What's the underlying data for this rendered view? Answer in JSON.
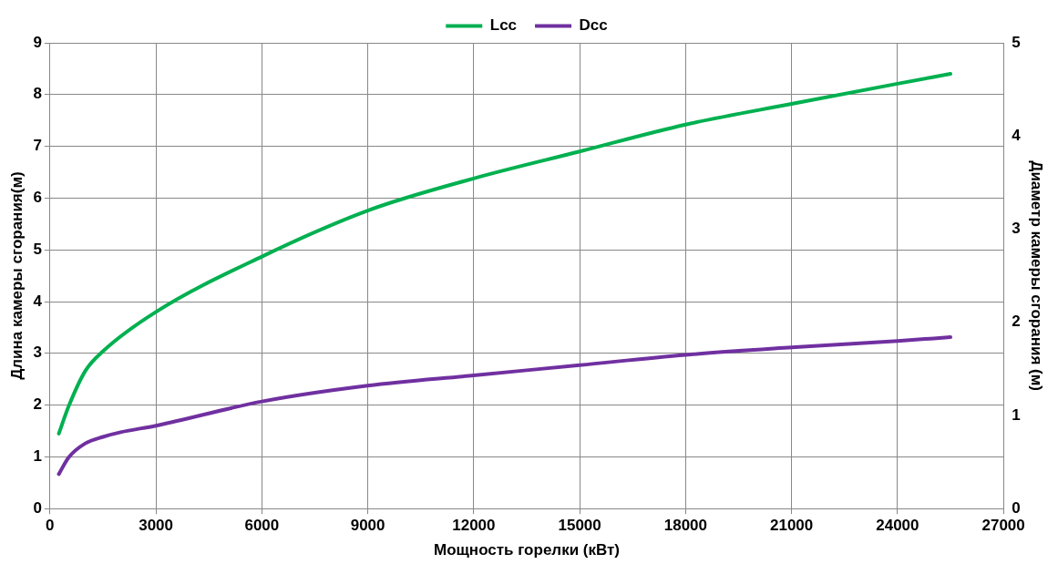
{
  "chart_data": {
    "type": "line",
    "xlabel": "Мощность горелки (кВт)",
    "ylabel": "Длина камеры сгорания(м)",
    "y2label": "Диаметр камеры сгорания (м)",
    "xlim": [
      0,
      27000
    ],
    "xticks": [
      0,
      3000,
      6000,
      9000,
      12000,
      15000,
      18000,
      21000,
      24000,
      27000
    ],
    "ylim": [
      0,
      9
    ],
    "yticks": [
      0,
      1,
      2,
      3,
      4,
      5,
      6,
      7,
      8,
      9
    ],
    "y2lim": [
      0,
      5
    ],
    "y2ticks": [
      0,
      1,
      2,
      3,
      4,
      5
    ],
    "grid": true,
    "legend": "top",
    "marker": "none",
    "line_style": "solid",
    "series": [
      {
        "name": "Lcc",
        "color": "#00b050",
        "x": [
          250,
          530,
          1000,
          1500,
          3000,
          6000,
          9000,
          12000,
          15000,
          18000,
          21000,
          24000,
          25500
        ],
        "values": [
          1.45,
          1.98,
          2.66,
          3.04,
          3.8,
          4.87,
          5.76,
          6.38,
          6.9,
          7.42,
          7.82,
          8.21,
          8.4
        ]
      },
      {
        "name": "Dcc",
        "color": "#7030a0",
        "axis": "y2",
        "x": [
          250,
          530,
          1000,
          1500,
          2000,
          3000,
          6000,
          9000,
          12000,
          15000,
          18000,
          21000,
          24000,
          25500
        ],
        "values": [
          0.37,
          0.55,
          0.7,
          0.77,
          0.82,
          0.89,
          1.15,
          1.32,
          1.43,
          1.54,
          1.65,
          1.73,
          1.8,
          1.84
        ]
      }
    ]
  }
}
